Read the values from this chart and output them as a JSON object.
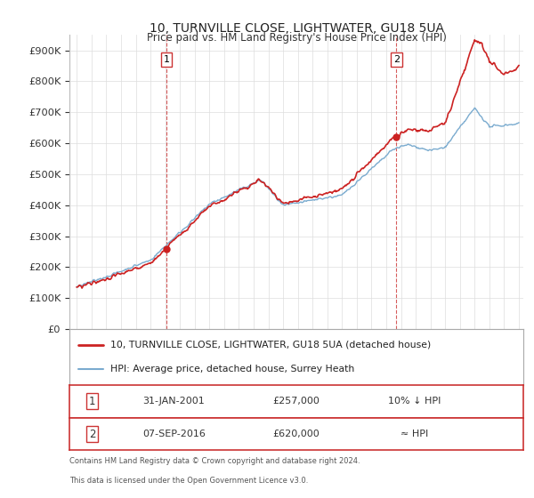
{
  "title": "10, TURNVILLE CLOSE, LIGHTWATER, GU18 5UA",
  "subtitle": "Price paid vs. HM Land Registry's House Price Index (HPI)",
  "ytick_values": [
    0,
    100000,
    200000,
    300000,
    400000,
    500000,
    600000,
    700000,
    800000,
    900000
  ],
  "ylim": [
    0,
    950000
  ],
  "xlim_left": 1994.5,
  "xlim_right": 2025.3,
  "sale1_date": 2001.08,
  "sale1_price": 257000,
  "sale1_label": "1",
  "sale2_date": 2016.68,
  "sale2_price": 620000,
  "sale2_label": "2",
  "legend_line1": "10, TURNVILLE CLOSE, LIGHTWATER, GU18 5UA (detached house)",
  "legend_line2": "HPI: Average price, detached house, Surrey Heath",
  "table_row1_num": "1",
  "table_row1_date": "31-JAN-2001",
  "table_row1_price": "£257,000",
  "table_row1_note": "10% ↓ HPI",
  "table_row2_num": "2",
  "table_row2_date": "07-SEP-2016",
  "table_row2_price": "£620,000",
  "table_row2_note": "≈ HPI",
  "footnote_line1": "Contains HM Land Registry data © Crown copyright and database right 2024.",
  "footnote_line2": "This data is licensed under the Open Government Licence v3.0.",
  "line_color_red": "#cc2222",
  "line_color_blue": "#7aabcf",
  "background_color": "#ffffff",
  "grid_color": "#dddddd",
  "sale_label_box_color": "#cc3333"
}
